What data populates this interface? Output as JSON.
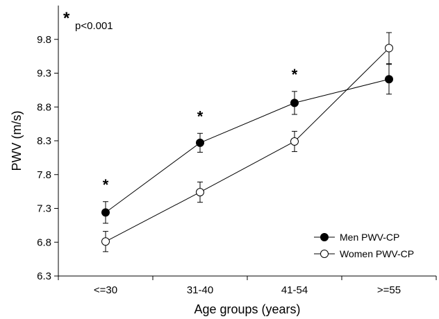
{
  "chart_data": {
    "type": "line",
    "xlabel": "Age groups (years)",
    "ylabel": "PWV (m/s)",
    "categories": [
      "<=30",
      "31-40",
      "41-54",
      ">=55"
    ],
    "ylim": [
      6.3,
      10.3
    ],
    "yticks": [
      "6.3",
      "6.8",
      "7.3",
      "7.8",
      "8.3",
      "8.8",
      "9.3",
      "9.8"
    ],
    "grid": false,
    "legend_position": "bottom-right",
    "series": [
      {
        "name": "Men PWV-CP",
        "marker": "filled-circle",
        "color": "#000000",
        "values": [
          7.24,
          8.27,
          8.86,
          9.21
        ],
        "error": [
          0.16,
          0.14,
          0.17,
          0.22
        ]
      },
      {
        "name": "Women PWV-CP",
        "marker": "open-circle",
        "color": "#000000",
        "values": [
          6.81,
          7.54,
          8.29,
          9.67
        ],
        "error": [
          0.15,
          0.15,
          0.15,
          0.23
        ]
      }
    ],
    "significance_marks": [
      {
        "category": "<=30",
        "symbol": "*"
      },
      {
        "category": "31-40",
        "symbol": "*"
      },
      {
        "category": "41-54",
        "symbol": "*"
      }
    ],
    "annotation": {
      "symbol": "*",
      "text": "p<0.001"
    }
  }
}
